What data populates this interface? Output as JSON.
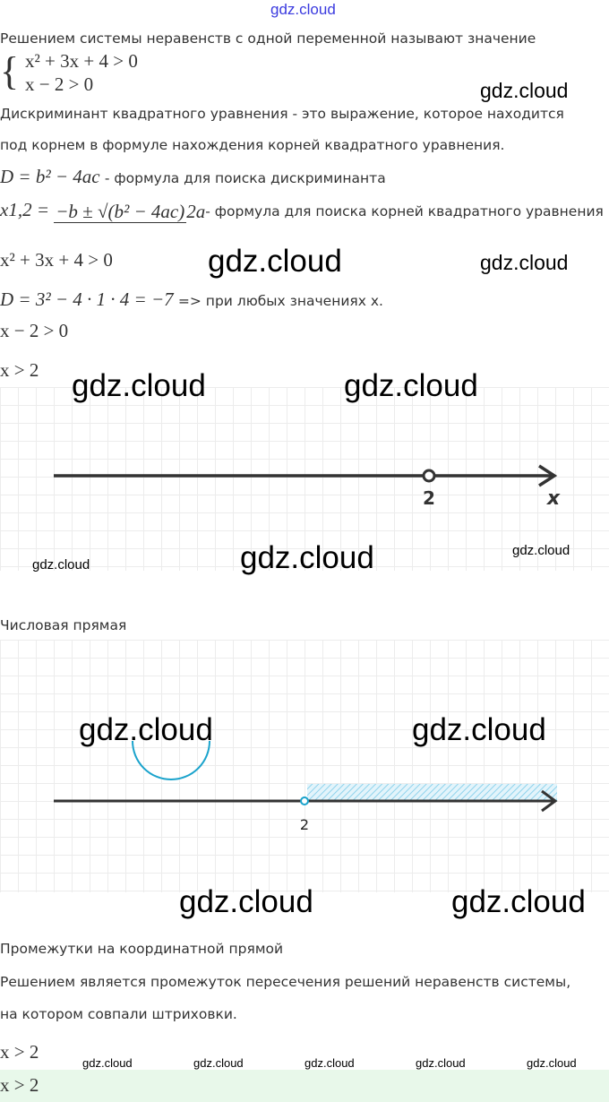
{
  "header_watermark": "gdz.cloud",
  "watermark": "gdz.cloud",
  "intro": "Решением системы неравенств с одной переменной называют значение",
  "system": {
    "eq1": "x² + 3x + 4 > 0",
    "eq2": "x − 2 > 0"
  },
  "discriminant_def_1": "Дискриминант квадратного уравнения - это выражение, которое находится",
  "discriminant_def_2": "под корнем в формуле нахождения корней квадратного уравнения.",
  "d_formula": "D = b² − 4ac",
  "d_formula_caption": "- формула для поиска дискриминанта",
  "roots_formula": {
    "lhs": "x1,2 =",
    "numerator": "−b ± √(b² − 4ac)",
    "denominator": "2a"
  },
  "roots_formula_caption": "- формула для поиска корней квадратного уравнения",
  "step1": "x² + 3x + 4 > 0",
  "step2": "D = 3² − 4 · 1 · 4 = −7",
  "step2_caption": "=> при любых значениях x.",
  "step3": "x − 2 > 0",
  "step4": "x > 2",
  "number_line_1": {
    "point": "2",
    "axis_label": "x",
    "point_open": true
  },
  "number_line_1_caption": "Числовая прямая",
  "number_line_2": {
    "point": "2",
    "shaded_from": 2,
    "shaded_direction": "right",
    "accent_color": "#1aa3cc"
  },
  "number_line_2_caption": "Промежутки на координатной прямой",
  "conclusion_1": "Решением является промежуток пересечения решений неравенств системы,",
  "conclusion_2": "на котором совпали штриховки.",
  "answer_plain": "x > 2",
  "answer_highlighted": "x > 2",
  "answer_highlight_color": "#e8f8ea"
}
